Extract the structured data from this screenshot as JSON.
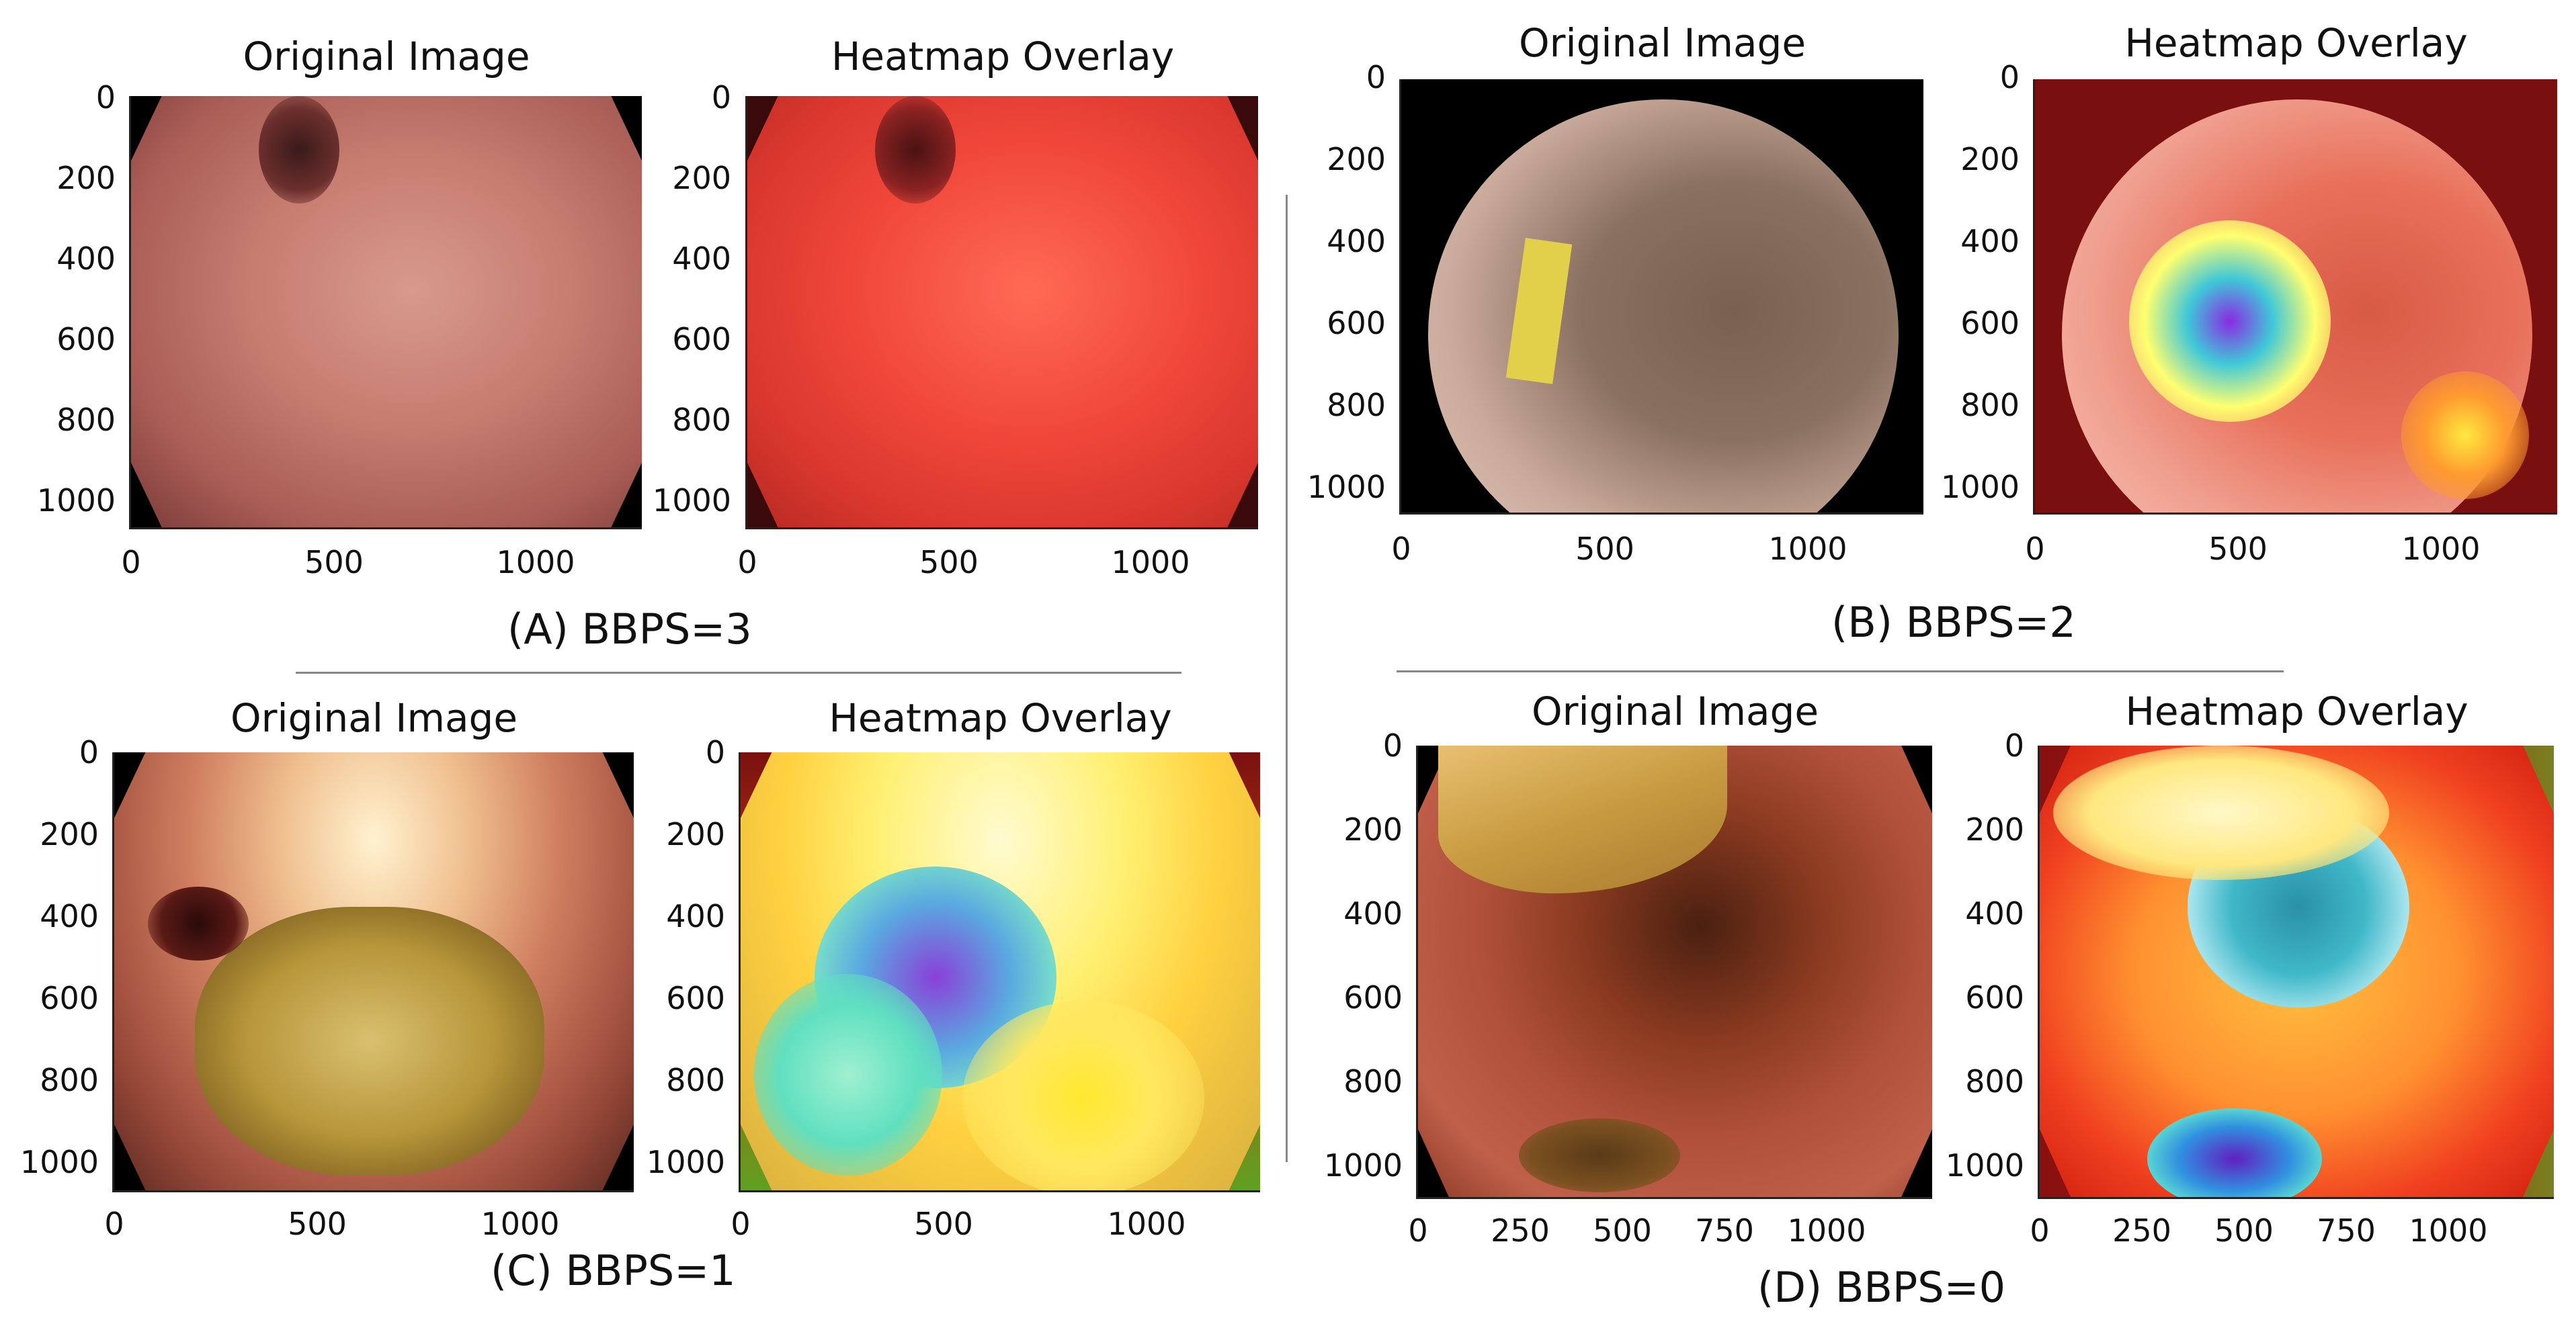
{
  "panels": [
    {
      "caption": "(A)  BBPS=3",
      "orig_title": "Original Image",
      "heat_title": "Heatmap Overlay",
      "y_ticks": [
        "0",
        "200",
        "400",
        "600",
        "800",
        "1000"
      ],
      "x_ticks": [
        "0",
        "500",
        "1000"
      ]
    },
    {
      "caption": "(B)  BBPS=2",
      "orig_title": "Original Image",
      "heat_title": "Heatmap Overlay",
      "y_ticks": [
        "0",
        "200",
        "400",
        "600",
        "800",
        "1000"
      ],
      "x_ticks": [
        "0",
        "500",
        "1000"
      ]
    },
    {
      "caption": "(C)  BBPS=1",
      "orig_title": "Original Image",
      "heat_title": "Heatmap Overlay",
      "y_ticks": [
        "0",
        "200",
        "400",
        "600",
        "800",
        "1000"
      ],
      "x_ticks": [
        "0",
        "500",
        "1000"
      ]
    },
    {
      "caption": "(D)  BBPS=0",
      "orig_title": "Original Image",
      "heat_title": "Heatmap Overlay",
      "y_ticks": [
        "0",
        "200",
        "400",
        "600",
        "800",
        "1000"
      ],
      "x_ticks": [
        "0",
        "250",
        "500",
        "750",
        "1000"
      ]
    }
  ]
}
